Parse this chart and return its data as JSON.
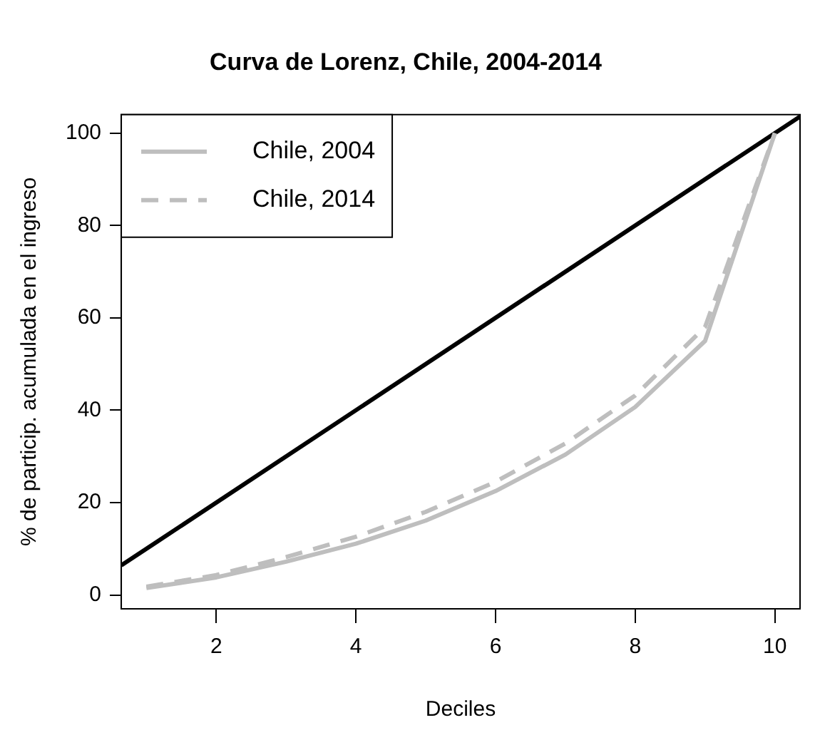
{
  "chart_data": {
    "type": "line",
    "title": "Curva de Lorenz, Chile, 2004-2014",
    "xlabel": "Deciles",
    "ylabel": "% de particip. acumulada en el ingreso",
    "x": [
      1,
      2,
      3,
      4,
      5,
      6,
      7,
      8,
      9,
      10
    ],
    "series": [
      {
        "name": "Chile, 2004",
        "color": "#bebebe",
        "line_style": "solid",
        "values": [
          1.5,
          3.8,
          7.2,
          11.1,
          16.1,
          22.5,
          30.4,
          40.7,
          55,
          100
        ]
      },
      {
        "name": "Chile, 2014",
        "color": "#bebebe",
        "line_style": "dashed",
        "values": [
          1.8,
          4.3,
          8.2,
          12.6,
          18,
          24.5,
          32.8,
          43.2,
          58,
          100
        ]
      },
      {
        "color": "#000000",
        "line_style": "solid",
        "x": [
          0.64,
          10.36
        ],
        "values": [
          6.4,
          103.6
        ]
      }
    ],
    "xlim": [
      0.64,
      10.36
    ],
    "xticks": [
      2,
      4,
      6,
      8,
      10
    ],
    "ylim": [
      -3,
      104
    ],
    "yticks": [
      0,
      20,
      40,
      60,
      80,
      100
    ],
    "grid": false,
    "legend": "top left",
    "marker": "none"
  }
}
